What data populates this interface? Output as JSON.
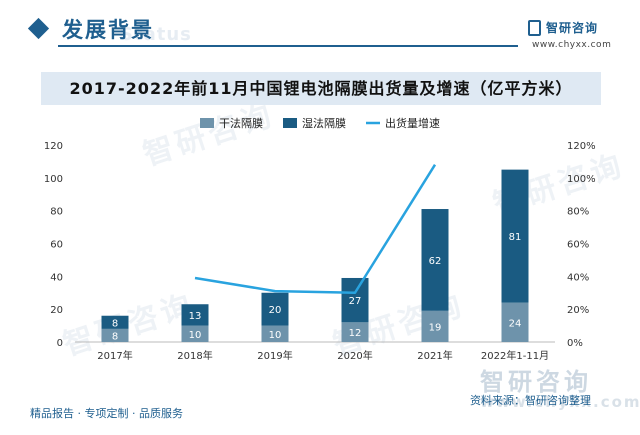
{
  "header": {
    "section_title": "发展背景",
    "section_ghost": "Status",
    "logo_name": "智研咨询",
    "logo_url": "www.chyxx.com"
  },
  "chart_data": {
    "type": "bar",
    "title": "2017-2022年前11月中国锂电池隔膜出货量及增速（亿平方米）",
    "categories": [
      "2017年",
      "2018年",
      "2019年",
      "2020年",
      "2021年",
      "2022年1-11月"
    ],
    "series": [
      {
        "name": "干法隔膜",
        "type": "bar",
        "stack": "total",
        "color": "#6e93ab",
        "values": [
          8,
          10,
          10,
          12,
          19,
          24
        ]
      },
      {
        "name": "湿法隔膜",
        "type": "bar",
        "stack": "total",
        "color": "#1a5b82",
        "values": [
          8,
          13,
          20,
          27,
          62,
          81
        ]
      },
      {
        "name": "出货量增速",
        "type": "line",
        "axis": "right",
        "color": "#29a3df",
        "values": [
          null,
          39,
          31,
          30,
          108,
          null
        ]
      }
    ],
    "ylim": [
      0,
      120
    ],
    "y_ticks": [
      0,
      20,
      40,
      60,
      80,
      100,
      120
    ],
    "y2lim": [
      0,
      120
    ],
    "y2_ticks": [
      "0%",
      "20%",
      "40%",
      "60%",
      "80%",
      "100%",
      "120%"
    ],
    "legend_position": "top",
    "grid": false
  },
  "footer": {
    "tagline": "精品报告 · 专项定制 · 品质服务",
    "source": "资料来源：智研咨询整理"
  },
  "watermark": {
    "text": "智研咨询",
    "url": "www.chyxx.com"
  }
}
